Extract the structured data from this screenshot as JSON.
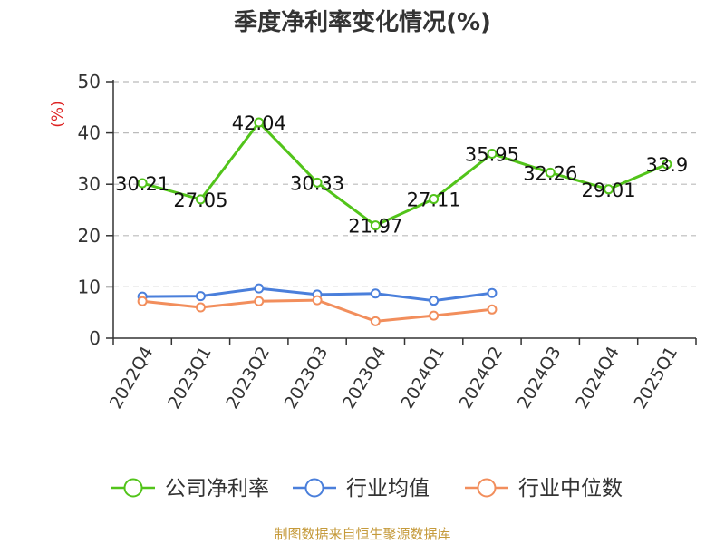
{
  "chart_data": {
    "type": "line",
    "title": "季度净利率变化情况(%)",
    "ylabel": "(%)",
    "xlabel": "",
    "ylim": [
      0,
      50
    ],
    "yticks": [
      0,
      10,
      20,
      30,
      40,
      50
    ],
    "grid": true,
    "legend_position": "bottom",
    "categories": [
      "2022Q4",
      "2023Q1",
      "2023Q2",
      "2023Q3",
      "2023Q4",
      "2024Q1",
      "2024Q2",
      "2024Q3",
      "2024Q4",
      "2025Q1"
    ],
    "series": [
      {
        "name": "公司净利率",
        "color": "#52c41a",
        "values": [
          30.21,
          27.05,
          42.04,
          30.33,
          21.97,
          27.11,
          35.95,
          32.26,
          29.01,
          33.9
        ],
        "labels": [
          "30.21",
          "27.05",
          "42.04",
          "30.33",
          "21.97",
          "27.11",
          "35.95",
          "32.26",
          "29.01",
          "33.9"
        ]
      },
      {
        "name": "行业均值",
        "color": "#4a7fdb",
        "values": [
          8.1,
          8.2,
          9.7,
          8.5,
          8.7,
          7.3,
          8.8,
          null,
          null,
          null
        ]
      },
      {
        "name": "行业中位数",
        "color": "#f28e5c",
        "values": [
          7.2,
          6.0,
          7.2,
          7.4,
          3.3,
          4.4,
          5.6,
          null,
          null,
          null
        ]
      }
    ]
  },
  "footer": {
    "source": "制图数据来自恒生聚源数据库"
  }
}
